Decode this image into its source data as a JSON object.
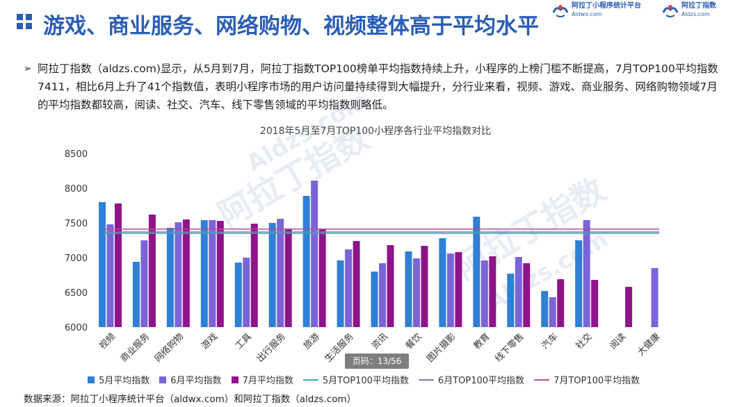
{
  "header": {
    "title": "游戏、商业服务、网络购物、视频整体高于平均水平",
    "brands": [
      {
        "name": "阿拉丁小程序统计平台",
        "url": "Aldwx.com",
        "icon": "aladdin-logo-icon"
      },
      {
        "name": "阿拉丁指数",
        "url": "Aldzs.com",
        "icon": "aladdin-logo-icon"
      }
    ]
  },
  "bullet": {
    "icon": "arrow-bullet-icon",
    "text": "阿拉丁指数（aldzs.com)显示，从5月到7月，阿拉丁指数TOP100榜单平均指数持续上升，小程序的上榜门槛不断提高，7月TOP100平均指数7411，相比6月上升了41个指数值，表明小程序市场的用户访问量持续得到大幅提升，分行业来看，视频、游戏、商业服务、网络购物领域7月的平均指数都较高，阅读、社交、汽车、线下零售领域的平均指数则略低。"
  },
  "watermarks": [
    "阿拉丁指数",
    "Aldzs.com",
    "阿拉丁指数",
    "Aldzs.com"
  ],
  "chart_data": {
    "type": "bar",
    "title": "2018年5月至7月TOP100小程序各行业平均指数对比",
    "categories": [
      "视频",
      "商业服务",
      "网络购物",
      "游戏",
      "工具",
      "出行服务",
      "旅游",
      "生活服务",
      "资讯",
      "餐饮",
      "图片摄影",
      "教育",
      "线下零售",
      "汽车",
      "社交",
      "阅读",
      "大健康"
    ],
    "series": [
      {
        "name": "5月平均指数",
        "color": "#2e7fd6",
        "values": [
          7800,
          6940,
          7430,
          7540,
          6930,
          7500,
          7890,
          6960,
          6800,
          7090,
          7280,
          7590,
          6770,
          6520,
          7250,
          null,
          null
        ]
      },
      {
        "name": "6月平均指数",
        "color": "#7b63d8",
        "values": [
          7480,
          7250,
          7510,
          7540,
          7000,
          7560,
          8110,
          7120,
          6920,
          6990,
          7060,
          6960,
          7010,
          6430,
          7540,
          null,
          6850
        ]
      },
      {
        "name": "7月平均指数",
        "color": "#8e1489",
        "values": [
          7780,
          7620,
          7550,
          7530,
          7490,
          7420,
          7420,
          7240,
          7180,
          7170,
          7080,
          7020,
          6920,
          6690,
          6680,
          6580,
          null
        ]
      }
    ],
    "reference_lines": [
      {
        "name": "5月TOP100平均指数",
        "color": "#3aa9b8",
        "value": 7350
      },
      {
        "name": "6月TOP100平均指数",
        "color": "#7b7fb0",
        "value": 7370
      },
      {
        "name": "7月TOP100平均指数",
        "color": "#b64f9a",
        "value": 7411
      }
    ],
    "ylim": [
      6000,
      8500
    ],
    "yticks": [
      6000,
      6500,
      7000,
      7500,
      8000,
      8500
    ],
    "grid": false,
    "legend_position": "bottom"
  },
  "page_badge": {
    "label": "页码：",
    "value": "13/56"
  },
  "source": "数据来源：阿拉丁小程序统计平台（aldwx.com）和阿拉丁指数（aldzs.com）"
}
